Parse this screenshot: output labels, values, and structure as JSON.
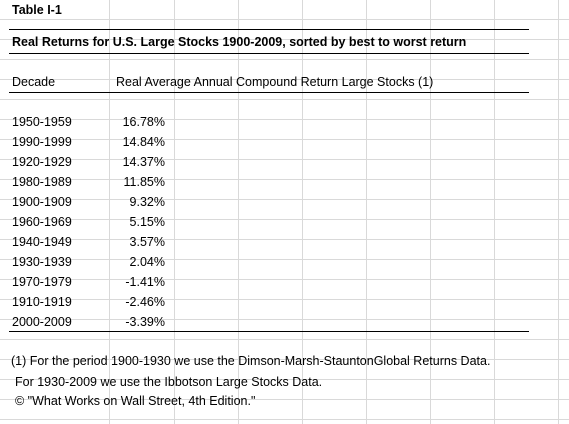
{
  "table": {
    "label": "Table I-1",
    "title": "Real Returns for U.S. Large Stocks 1900-2009, sorted by best to worst return",
    "header_decade": "Decade",
    "header_return": "Real Average Annual Compound Return Large Stocks (1)",
    "rows": [
      {
        "decade": "1950-1959",
        "value": "16.78%"
      },
      {
        "decade": "1990-1999",
        "value": "14.84%"
      },
      {
        "decade": "1920-1929",
        "value": "14.37%"
      },
      {
        "decade": "1980-1989",
        "value": "11.85%"
      },
      {
        "decade": "1900-1909",
        "value": "9.32%"
      },
      {
        "decade": "1960-1969",
        "value": "5.15%"
      },
      {
        "decade": "1940-1949",
        "value": "3.57%"
      },
      {
        "decade": "1930-1939",
        "value": "2.04%"
      },
      {
        "decade": "1970-1979",
        "value": "-1.41%"
      },
      {
        "decade": "1910-1919",
        "value": "-2.46%"
      },
      {
        "decade": "2000-2009",
        "value": "-3.39%"
      }
    ]
  },
  "footnotes": {
    "line1": "(1) For the period 1900-1930 we use the Dimson-Marsh-StauntonGlobal Returns Data.",
    "line2": "For 1930-2009 we use the Ibbotson Large Stocks Data.",
    "line3": "© \"What Works on Wall Street, 4th Edition.\""
  }
}
